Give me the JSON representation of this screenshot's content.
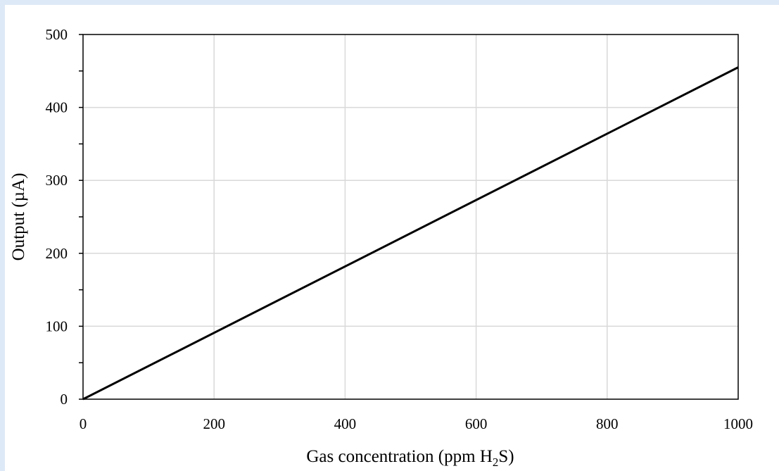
{
  "chart_data": {
    "type": "line",
    "xlabel": "Gas concentration (ppm H2S)",
    "xlabel_parts": {
      "before": "Gas concentration (ppm H",
      "sub": "2",
      "after": "S)"
    },
    "ylabel": "Output (µA)",
    "xlim": [
      0,
      1000
    ],
    "ylim": [
      0,
      500
    ],
    "x_ticks": [
      0,
      200,
      400,
      600,
      800,
      1000
    ],
    "y_ticks": [
      0,
      100,
      200,
      300,
      400,
      500
    ],
    "grid": true,
    "series": [
      {
        "x": [
          0,
          1000
        ],
        "y": [
          0,
          455
        ]
      }
    ],
    "colors": {
      "line": "#000000",
      "grid": "#d9d9d9",
      "axis": "#000000",
      "frame": "#dde9f6"
    }
  }
}
